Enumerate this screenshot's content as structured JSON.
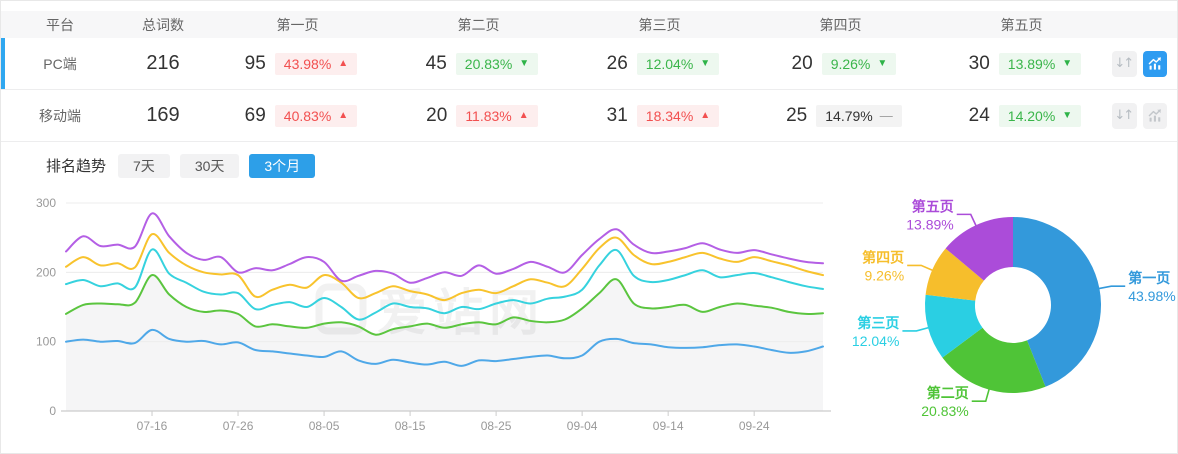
{
  "table": {
    "headers": [
      "平台",
      "总词数",
      "第一页",
      "第二页",
      "第三页",
      "第四页",
      "第五页"
    ],
    "rows": [
      {
        "platform": "PC端",
        "total": "216",
        "selected": true,
        "chart_active": true,
        "pages": [
          {
            "count": "95",
            "pct": "43.98%",
            "trend": "up"
          },
          {
            "count": "45",
            "pct": "20.83%",
            "trend": "down"
          },
          {
            "count": "26",
            "pct": "12.04%",
            "trend": "down"
          },
          {
            "count": "20",
            "pct": "9.26%",
            "trend": "down"
          },
          {
            "count": "30",
            "pct": "13.89%",
            "trend": "down"
          }
        ]
      },
      {
        "platform": "移动端",
        "total": "169",
        "selected": false,
        "chart_active": false,
        "pages": [
          {
            "count": "69",
            "pct": "40.83%",
            "trend": "up"
          },
          {
            "count": "20",
            "pct": "11.83%",
            "trend": "up"
          },
          {
            "count": "31",
            "pct": "18.34%",
            "trend": "up"
          },
          {
            "count": "25",
            "pct": "14.79%",
            "trend": "flat"
          },
          {
            "count": "24",
            "pct": "14.20%",
            "trend": "down"
          }
        ]
      }
    ]
  },
  "trend": {
    "title": "排名趋势",
    "tabs": [
      {
        "label": "7天",
        "active": false
      },
      {
        "label": "30天",
        "active": false
      },
      {
        "label": "3个月",
        "active": true
      }
    ],
    "watermark": "爱站网"
  },
  "colors": {
    "accent_blue": "#2d9fe8",
    "selected_bar": "#2fa7f0",
    "badge_up_text": "#f25050",
    "badge_up_bg": "#fdeeee",
    "badge_down_text": "#3ab54a",
    "badge_down_bg": "#edf8ef",
    "badge_flat_text": "#333333",
    "badge_flat_bg": "#f3f3f3",
    "axis_label": "#999999",
    "gridline": "#ececec",
    "axis_line": "#cccccc",
    "area_fill": "#f5f5f6"
  },
  "chart_data": [
    {
      "type": "line",
      "title": "排名趋势(3个月)",
      "x_ticks": [
        "07-16",
        "07-26",
        "08-05",
        "08-15",
        "08-25",
        "09-04",
        "09-14",
        "09-24"
      ],
      "x_tick_days": [
        10,
        20,
        30,
        40,
        50,
        60,
        70,
        80
      ],
      "x_total_days": 88,
      "point_interval_days": 2,
      "ylim": [
        0,
        300
      ],
      "y_ticks": [
        0,
        100,
        200,
        300
      ],
      "grid": "horizontal",
      "legend_position": "none",
      "area_fill_series": "第二页",
      "series": [
        {
          "name": "第一页",
          "color": "#4fa8e8",
          "values": [
            100,
            103,
            100,
            101,
            98,
            117,
            104,
            100,
            101,
            96,
            99,
            88,
            86,
            83,
            80,
            78,
            86,
            73,
            68,
            74,
            70,
            67,
            71,
            65,
            73,
            72,
            75,
            78,
            80,
            76,
            80,
            100,
            104,
            98,
            96,
            92,
            91,
            92,
            95,
            96,
            93,
            88,
            84,
            86,
            93
          ]
        },
        {
          "name": "第二页",
          "color": "#5bc53f",
          "values": [
            140,
            153,
            155,
            154,
            156,
            196,
            168,
            150,
            143,
            145,
            140,
            122,
            125,
            122,
            120,
            126,
            128,
            122,
            110,
            118,
            122,
            126,
            120,
            125,
            128,
            125,
            135,
            130,
            128,
            132,
            148,
            170,
            190,
            155,
            148,
            150,
            153,
            143,
            150,
            155,
            152,
            149,
            143,
            140,
            141
          ]
        },
        {
          "name": "第三页",
          "color": "#36d2de",
          "values": [
            183,
            189,
            180,
            184,
            178,
            233,
            198,
            185,
            172,
            168,
            170,
            147,
            153,
            157,
            150,
            163,
            150,
            132,
            142,
            155,
            150,
            148,
            141,
            150,
            147,
            155,
            160,
            155,
            162,
            165,
            175,
            210,
            232,
            195,
            186,
            189,
            196,
            203,
            193,
            196,
            199,
            193,
            186,
            180,
            176
          ]
        },
        {
          "name": "第四页",
          "color": "#f8c32d",
          "values": [
            208,
            222,
            210,
            213,
            207,
            255,
            228,
            210,
            200,
            197,
            196,
            165,
            175,
            182,
            178,
            196,
            185,
            163,
            170,
            180,
            173,
            168,
            160,
            170,
            175,
            170,
            180,
            190,
            185,
            180,
            205,
            235,
            250,
            225,
            212,
            215,
            222,
            228,
            220,
            215,
            222,
            216,
            210,
            202,
            196
          ]
        },
        {
          "name": "第五页",
          "color": "#b45fe5",
          "values": [
            230,
            252,
            238,
            240,
            237,
            285,
            252,
            228,
            218,
            222,
            200,
            206,
            203,
            212,
            222,
            215,
            188,
            195,
            202,
            198,
            185,
            192,
            200,
            195,
            210,
            198,
            205,
            215,
            208,
            200,
            225,
            248,
            262,
            240,
            228,
            230,
            235,
            242,
            233,
            228,
            232,
            226,
            220,
            215,
            213
          ]
        }
      ]
    },
    {
      "type": "pie",
      "donut": true,
      "start_angle": "top",
      "direction": "clockwise",
      "legend_position": "none",
      "items": [
        {
          "label": "第一页",
          "value": 43.98,
          "display": "43.98%",
          "color": "#3399db"
        },
        {
          "label": "第二页",
          "value": 20.83,
          "display": "20.83%",
          "color": "#4fc437"
        },
        {
          "label": "第三页",
          "value": 12.04,
          "display": "12.04%",
          "color": "#2acfe3"
        },
        {
          "label": "第四页",
          "value": 9.26,
          "display": "9.26%",
          "color": "#f6be2c"
        },
        {
          "label": "第五页",
          "value": 13.89,
          "display": "13.89%",
          "color": "#ab4cd9"
        }
      ]
    }
  ]
}
